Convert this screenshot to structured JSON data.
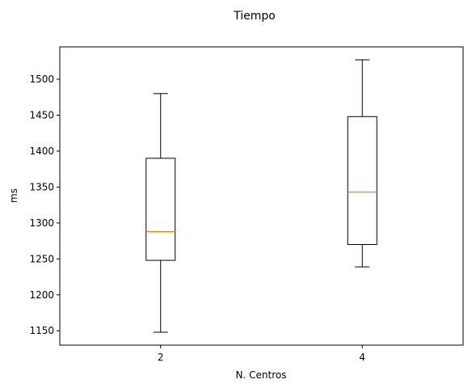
{
  "chart_data": {
    "type": "box",
    "title": "Tiempo",
    "xlabel": "N. Centros",
    "ylabel": "ms",
    "categories": [
      "2",
      "4"
    ],
    "ylim": [
      1130,
      1545
    ],
    "yticks": [
      1150,
      1200,
      1250,
      1300,
      1350,
      1400,
      1450,
      1500
    ],
    "boxes": [
      {
        "category": "2",
        "whisker_low": 1148,
        "q1": 1248,
        "median": 1288,
        "q3": 1390,
        "whisker_high": 1480
      },
      {
        "category": "4",
        "whisker_low": 1239,
        "q1": 1270,
        "median": 1343,
        "q3": 1448,
        "whisker_high": 1527
      }
    ],
    "grid": false,
    "colors": {
      "box": "#000000",
      "median": "#ff7f0e"
    }
  }
}
